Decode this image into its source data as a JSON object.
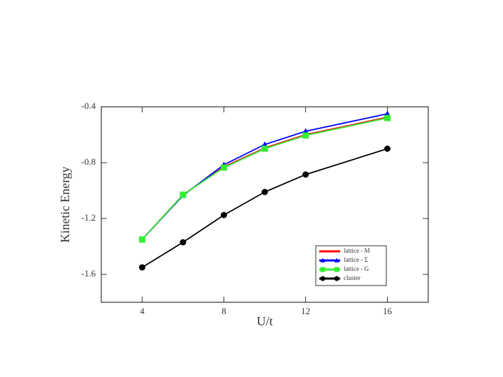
{
  "chart_data": {
    "type": "line",
    "x_label": "U/t",
    "y_label": "Kinetic Energy",
    "x": [
      4,
      6,
      8,
      10,
      12,
      16
    ],
    "series": [
      {
        "name": "lattice - M",
        "color": "#ff0000",
        "marker": "none",
        "values": [
          -1.35,
          -1.03,
          -0.83,
          -0.695,
          -0.6,
          -0.475
        ]
      },
      {
        "name": "lattice - Σ",
        "color": "#0000ff",
        "marker": "triangle",
        "values": [
          -1.35,
          -1.035,
          -0.815,
          -0.67,
          -0.575,
          -0.45
        ]
      },
      {
        "name": "lattice - G",
        "color": "#33ee33",
        "marker": "square",
        "values": [
          -1.35,
          -1.03,
          -0.835,
          -0.7,
          -0.605,
          -0.48
        ]
      },
      {
        "name": "cluster",
        "color": "#000000",
        "marker": "circle",
        "values": [
          -1.55,
          -1.37,
          -1.175,
          -1.01,
          -0.885,
          -0.7
        ]
      }
    ],
    "xlim": [
      2,
      18
    ],
    "xticks": [
      4,
      8,
      12,
      16
    ],
    "ylim": [
      -1.8,
      -0.4
    ],
    "yticks": [
      -1.6,
      -1.2,
      -0.8,
      -0.4
    ],
    "legend": "lower right"
  }
}
